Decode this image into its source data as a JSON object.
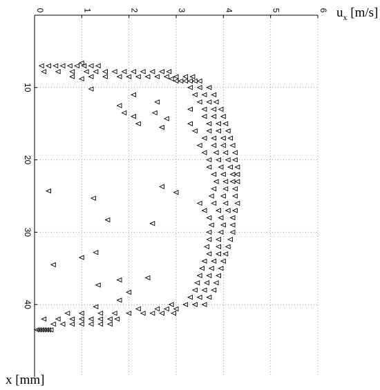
{
  "chart_data": {
    "type": "scatter",
    "marker": "triangle-left",
    "marker_color": "#000000",
    "axis_label_top": {
      "base": "u",
      "sub": "x",
      "unit": "[m/s]"
    },
    "axis_label_left": "x [mm]",
    "axis_top_ticks": [
      0,
      1,
      2,
      3,
      4,
      5,
      6
    ],
    "axis_top_range": [
      0,
      6
    ],
    "axis_left_ticks": [
      10,
      20,
      30,
      40
    ],
    "axis_left_tick_labels": [
      "10",
      "20",
      "30",
      "40"
    ],
    "axis_left_range": [
      0,
      50
    ],
    "grid": true,
    "grid_style": "dotted",
    "series": [
      {
        "points": [
          [
            0.15,
            7.0
          ],
          [
            0.3,
            7.0
          ],
          [
            0.45,
            7.0
          ],
          [
            0.6,
            7.0
          ],
          [
            0.75,
            7.0
          ],
          [
            0.9,
            7.0
          ],
          [
            1.05,
            7.0
          ],
          [
            1.2,
            7.0
          ],
          [
            1.35,
            7.0
          ],
          [
            1.0,
            6.6
          ],
          [
            0.2,
            7.8
          ],
          [
            0.5,
            7.8
          ],
          [
            0.8,
            7.8
          ],
          [
            1.1,
            7.8
          ],
          [
            1.3,
            7.8
          ],
          [
            1.5,
            7.8
          ],
          [
            1.7,
            7.8
          ],
          [
            1.9,
            7.8
          ],
          [
            2.1,
            7.8
          ],
          [
            2.3,
            7.8
          ],
          [
            2.5,
            7.8
          ],
          [
            2.7,
            7.8
          ],
          [
            2.85,
            7.8
          ],
          [
            0.8,
            8.5
          ],
          [
            1.2,
            8.5
          ],
          [
            1.5,
            8.5
          ],
          [
            1.8,
            8.5
          ],
          [
            2.0,
            8.5
          ],
          [
            2.2,
            8.5
          ],
          [
            2.4,
            8.5
          ],
          [
            2.6,
            8.5
          ],
          [
            2.8,
            8.5
          ],
          [
            3.0,
            8.5
          ],
          [
            3.2,
            8.5
          ],
          [
            3.35,
            8.5
          ],
          [
            1.0,
            8.8
          ],
          [
            2.9,
            8.8
          ],
          [
            3.0,
            9.1
          ],
          [
            3.1,
            9.1
          ],
          [
            3.2,
            9.1
          ],
          [
            3.3,
            9.1
          ],
          [
            3.4,
            9.1
          ],
          [
            3.5,
            9.1
          ],
          [
            1.2,
            10.2
          ],
          [
            3.3,
            10.0
          ],
          [
            3.5,
            10.0
          ],
          [
            3.7,
            10.0
          ],
          [
            2.1,
            11.0
          ],
          [
            3.4,
            11.0
          ],
          [
            3.6,
            11.0
          ],
          [
            3.8,
            11.0
          ],
          [
            2.6,
            12.0
          ],
          [
            3.5,
            12.0
          ],
          [
            3.7,
            12.0
          ],
          [
            3.85,
            12.0
          ],
          [
            1.8,
            12.5
          ],
          [
            3.3,
            13.0
          ],
          [
            3.6,
            13.0
          ],
          [
            3.8,
            13.0
          ],
          [
            3.95,
            13.0
          ],
          [
            1.9,
            13.5
          ],
          [
            2.55,
            13.5
          ],
          [
            3.6,
            14.0
          ],
          [
            3.8,
            14.0
          ],
          [
            4.0,
            14.0
          ],
          [
            2.1,
            14.0
          ],
          [
            2.8,
            14.3
          ],
          [
            3.3,
            15.0
          ],
          [
            3.7,
            15.0
          ],
          [
            3.9,
            15.0
          ],
          [
            4.05,
            15.0
          ],
          [
            2.2,
            15.0
          ],
          [
            2.7,
            15.5
          ],
          [
            3.4,
            16.0
          ],
          [
            3.7,
            16.0
          ],
          [
            3.9,
            16.0
          ],
          [
            4.1,
            16.0
          ],
          [
            3.6,
            17.0
          ],
          [
            3.8,
            17.0
          ],
          [
            4.0,
            17.0
          ],
          [
            4.15,
            17.0
          ],
          [
            3.5,
            18.0
          ],
          [
            3.8,
            18.0
          ],
          [
            4.0,
            18.0
          ],
          [
            4.2,
            18.0
          ],
          [
            3.6,
            19.0
          ],
          [
            3.85,
            19.0
          ],
          [
            4.05,
            19.0
          ],
          [
            4.25,
            19.0
          ],
          [
            3.7,
            20.0
          ],
          [
            3.9,
            20.0
          ],
          [
            4.1,
            20.0
          ],
          [
            4.25,
            20.0
          ],
          [
            3.7,
            21.0
          ],
          [
            3.95,
            21.0
          ],
          [
            4.15,
            21.0
          ],
          [
            4.3,
            21.0
          ],
          [
            3.8,
            22.0
          ],
          [
            4.0,
            22.0
          ],
          [
            4.2,
            22.0
          ],
          [
            4.3,
            22.0
          ],
          [
            3.85,
            23.0
          ],
          [
            4.05,
            23.0
          ],
          [
            4.2,
            23.0
          ],
          [
            4.3,
            23.0
          ],
          [
            2.7,
            23.7
          ],
          [
            3.8,
            24.0
          ],
          [
            4.05,
            24.0
          ],
          [
            4.25,
            24.0
          ],
          [
            0.3,
            24.3
          ],
          [
            3.0,
            24.5
          ],
          [
            3.75,
            25.0
          ],
          [
            4.0,
            25.0
          ],
          [
            4.25,
            25.0
          ],
          [
            1.25,
            25.3
          ],
          [
            3.5,
            26.0
          ],
          [
            3.8,
            26.0
          ],
          [
            4.05,
            26.0
          ],
          [
            4.3,
            26.0
          ],
          [
            3.6,
            27.0
          ],
          [
            3.9,
            27.0
          ],
          [
            4.1,
            27.0
          ],
          [
            4.25,
            27.0
          ],
          [
            1.55,
            28.3
          ],
          [
            3.7,
            28.0
          ],
          [
            3.95,
            28.0
          ],
          [
            4.2,
            28.0
          ],
          [
            2.5,
            28.8
          ],
          [
            3.75,
            29.0
          ],
          [
            4.0,
            29.0
          ],
          [
            4.2,
            29.0
          ],
          [
            3.7,
            30.0
          ],
          [
            3.95,
            30.0
          ],
          [
            4.2,
            30.0
          ],
          [
            3.7,
            31.0
          ],
          [
            3.9,
            31.0
          ],
          [
            4.15,
            31.0
          ],
          [
            3.65,
            32.0
          ],
          [
            3.9,
            32.0
          ],
          [
            4.1,
            32.0
          ],
          [
            1.3,
            32.8
          ],
          [
            3.7,
            33.0
          ],
          [
            3.9,
            33.0
          ],
          [
            4.05,
            33.0
          ],
          [
            1.0,
            33.5
          ],
          [
            3.6,
            34.0
          ],
          [
            3.8,
            34.0
          ],
          [
            4.0,
            34.0
          ],
          [
            0.4,
            34.5
          ],
          [
            3.55,
            35.0
          ],
          [
            3.75,
            35.0
          ],
          [
            3.95,
            35.0
          ],
          [
            3.5,
            36.0
          ],
          [
            3.7,
            36.0
          ],
          [
            3.9,
            36.0
          ],
          [
            1.8,
            36.6
          ],
          [
            2.4,
            36.3
          ],
          [
            3.45,
            37.0
          ],
          [
            3.65,
            37.0
          ],
          [
            3.85,
            37.0
          ],
          [
            1.35,
            37.3
          ],
          [
            3.4,
            38.0
          ],
          [
            3.6,
            38.0
          ],
          [
            3.8,
            38.0
          ],
          [
            2.0,
            38.3
          ],
          [
            3.3,
            39.0
          ],
          [
            3.5,
            39.0
          ],
          [
            3.7,
            39.0
          ],
          [
            1.8,
            39.4
          ],
          [
            2.9,
            40.0
          ],
          [
            3.2,
            40.0
          ],
          [
            3.4,
            40.0
          ],
          [
            3.6,
            40.0
          ],
          [
            1.3,
            40.3
          ],
          [
            2.2,
            40.6
          ],
          [
            2.6,
            40.6
          ],
          [
            2.8,
            40.6
          ],
          [
            3.0,
            40.6
          ],
          [
            0.7,
            41.2
          ],
          [
            1.0,
            41.2
          ],
          [
            1.4,
            41.2
          ],
          [
            1.7,
            41.2
          ],
          [
            2.0,
            41.2
          ],
          [
            2.3,
            41.2
          ],
          [
            2.5,
            41.2
          ],
          [
            2.7,
            41.2
          ],
          [
            2.95,
            41.2
          ],
          [
            0.2,
            42.0
          ],
          [
            0.5,
            42.0
          ],
          [
            0.8,
            42.0
          ],
          [
            1.0,
            42.0
          ],
          [
            1.2,
            42.0
          ],
          [
            1.4,
            42.0
          ],
          [
            1.6,
            42.0
          ],
          [
            1.75,
            42.0
          ],
          [
            0.4,
            42.7
          ],
          [
            0.6,
            42.7
          ],
          [
            0.8,
            42.7
          ],
          [
            1.0,
            42.7
          ],
          [
            1.2,
            42.7
          ],
          [
            1.4,
            42.7
          ],
          [
            1.6,
            42.7
          ],
          [
            0.05,
            43.5
          ],
          [
            0.1,
            43.5
          ],
          [
            0.15,
            43.5
          ],
          [
            0.2,
            43.5
          ],
          [
            0.25,
            43.5
          ],
          [
            0.3,
            43.5
          ],
          [
            0.35,
            43.5
          ]
        ]
      }
    ]
  }
}
